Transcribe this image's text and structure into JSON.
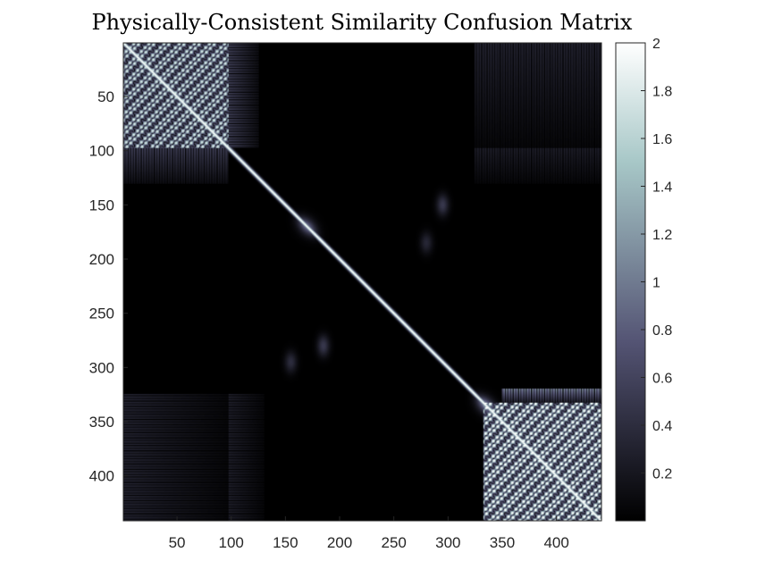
{
  "chart_data": {
    "type": "heatmap",
    "title": "Physically-Consistent Similarity Confusion Matrix",
    "xlabel": "",
    "ylabel": "",
    "matrix_size": 441,
    "x_ticks": [
      50,
      100,
      150,
      200,
      250,
      300,
      350,
      400
    ],
    "y_ticks": [
      50,
      100,
      150,
      200,
      250,
      300,
      350,
      400
    ],
    "xlim": [
      1,
      441
    ],
    "ylim": [
      1,
      441
    ],
    "y_direction": "reverse",
    "colormap": "bone",
    "clim": [
      0,
      2
    ],
    "colorbar": {
      "location": "right",
      "ticks": [
        0.2,
        0.4,
        0.6,
        0.8,
        1,
        1.2,
        1.4,
        1.6,
        1.8,
        2
      ],
      "tick_labels": [
        "0.2",
        "0.4",
        "0.6",
        "0.8",
        "1",
        "1.2",
        "1.4",
        "1.6",
        "1.8",
        "2"
      ]
    },
    "structure": {
      "diagonal_value": 2,
      "high_similarity_blocks": [
        {
          "rows": [
            1,
            97
          ],
          "cols": [
            1,
            97
          ],
          "level": 1.3
        },
        {
          "rows": [
            333,
            441
          ],
          "cols": [
            333,
            441
          ],
          "level": 1.5
        }
      ],
      "stripe_regions": [
        {
          "rows": [
            1,
            97
          ],
          "cols": [
            98,
            125
          ],
          "level": 0.6
        },
        {
          "rows": [
            98,
            130
          ],
          "cols": [
            1,
            97
          ],
          "level": 0.6
        },
        {
          "rows": [
            1,
            97
          ],
          "cols": [
            325,
            441
          ],
          "level": 0.35
        },
        {
          "rows": [
            325,
            441
          ],
          "cols": [
            1,
            97
          ],
          "level": 0.35
        },
        {
          "rows": [
            325,
            441
          ],
          "cols": [
            98,
            130
          ],
          "level": 0.3
        },
        {
          "rows": [
            98,
            130
          ],
          "cols": [
            325,
            441
          ],
          "level": 0.3
        },
        {
          "rows": [
            320,
            332
          ],
          "cols": [
            350,
            441
          ],
          "level": 1.2
        }
      ],
      "diagonal_hotspots": [
        {
          "center": 170,
          "level": 1.2
        },
        {
          "center": 335,
          "level": 1.4
        }
      ],
      "off_diagonal_blobs": [
        {
          "row": 150,
          "col": 295,
          "level": 0.5
        },
        {
          "row": 185,
          "col": 280,
          "level": 0.35
        },
        {
          "row": 280,
          "col": 185,
          "level": 0.5
        },
        {
          "row": 295,
          "col": 155,
          "level": 0.4
        }
      ]
    }
  }
}
